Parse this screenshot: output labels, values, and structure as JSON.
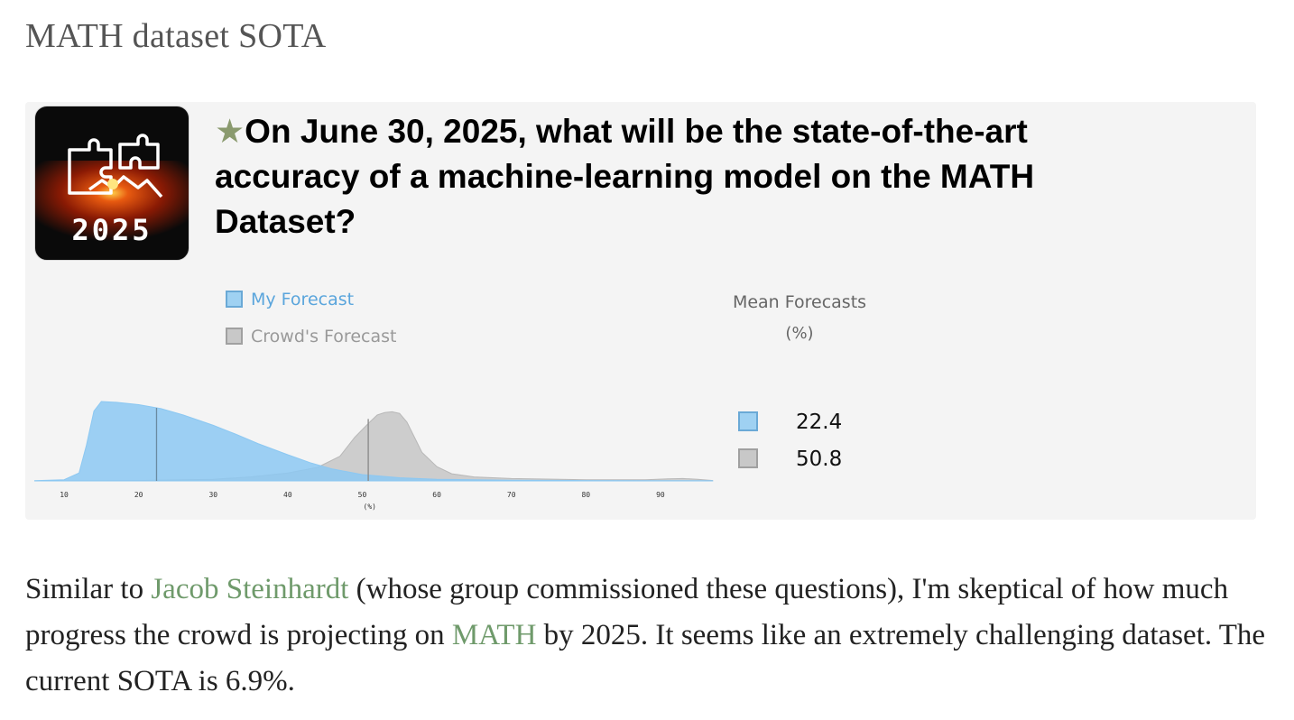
{
  "page": {
    "heading": "MATH dataset SOTA"
  },
  "card": {
    "logo_year": "2025",
    "star": "★",
    "question": "On June 30, 2025, what will be the state-of-the-art accuracy of a machine-learning model on the MATH Dataset?"
  },
  "legend": {
    "my_forecast": "My Forecast",
    "crowd_forecast": "Crowd's Forecast"
  },
  "mean_forecasts": {
    "title": "Mean Forecasts",
    "unit": "(%)",
    "my_value": "22.4",
    "crowd_value": "50.8"
  },
  "colors": {
    "my_forecast": "#9fd1f2",
    "crowd_forecast": "#c8c8c8",
    "link": "#6f9a6b"
  },
  "chart_data": {
    "type": "area",
    "xlabel": "(%)",
    "xlim": [
      6,
      98
    ],
    "xticks": [
      10,
      20,
      30,
      40,
      50,
      60,
      70,
      80,
      90
    ],
    "series": [
      {
        "name": "My Forecast",
        "mean": 22.4,
        "x": [
          6,
          10,
          12,
          13,
          14,
          15,
          17,
          20,
          23,
          26,
          30,
          33,
          36,
          40,
          43,
          46,
          50,
          55,
          60,
          70,
          80,
          90,
          97
        ],
        "y": [
          0.2,
          1.5,
          10,
          45,
          88,
          100,
          99,
          96,
          91,
          83,
          70,
          59,
          47,
          33,
          23,
          15,
          8,
          4,
          2,
          0.9,
          0.5,
          0.3,
          0.2
        ]
      },
      {
        "name": "Crowd's Forecast",
        "mean": 50.8,
        "x": [
          6,
          20,
          30,
          35,
          40,
          44,
          47,
          49,
          51,
          52,
          53,
          54,
          55,
          56,
          57,
          58,
          60,
          62,
          65,
          70,
          80,
          88,
          91,
          93,
          95,
          97
        ],
        "y": [
          0,
          0.5,
          2,
          5,
          10,
          17,
          31,
          55,
          74,
          83,
          86,
          87,
          85,
          74,
          55,
          36,
          18,
          9,
          5,
          3,
          1.5,
          1.5,
          2.5,
          3,
          2,
          0.5
        ]
      }
    ]
  },
  "body": {
    "t1": "Similar to ",
    "link1": "Jacob Steinhardt",
    "t2": " (whose group commissioned these questions), I'm skeptical of how much progress the crowd is projecting on ",
    "link2": "MATH",
    "t3": " by 2025. It seems like an extremely challenging dataset. The current SOTA is 6.9%."
  }
}
